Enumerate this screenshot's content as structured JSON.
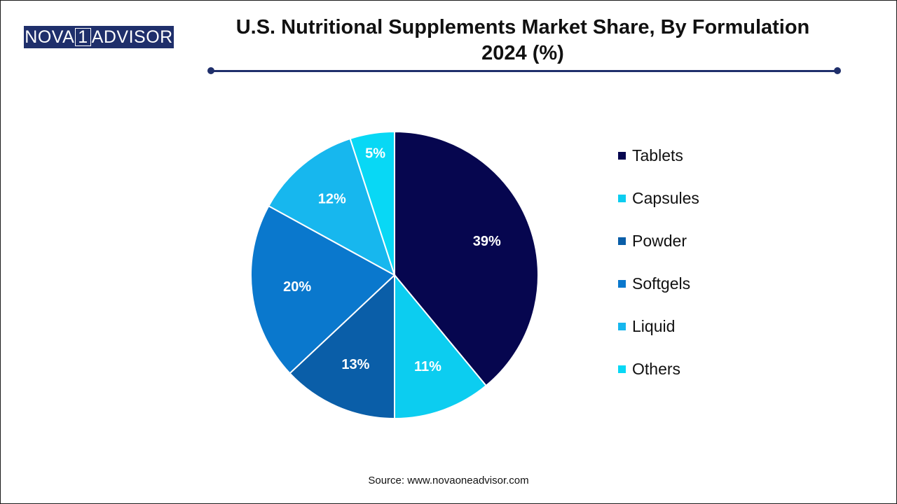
{
  "header": {
    "logo": {
      "part1": "NOVA",
      "part2": "1",
      "part3": "ADVISOR"
    },
    "title_line1": "U.S. Nutritional Supplements Market Share, By Formulation",
    "title_line2": "2024 (%)"
  },
  "chart_data": {
    "type": "pie",
    "title": "U.S. Nutritional Supplements Market Share, By Formulation 2024 (%)",
    "legend_placement": "right",
    "slices": [
      {
        "label": "Tablets",
        "value": 39,
        "display": "39%",
        "color": "#06064f"
      },
      {
        "label": "Capsules",
        "value": 11,
        "display": "11%",
        "color": "#0ccdf0"
      },
      {
        "label": "Powder",
        "value": 13,
        "display": "13%",
        "color": "#0a5ea8"
      },
      {
        "label": "Softgels",
        "value": 20,
        "display": "20%",
        "color": "#0a78cd"
      },
      {
        "label": "Liquid",
        "value": 12,
        "display": "12%",
        "color": "#17b7ee"
      },
      {
        "label": "Others",
        "value": 5,
        "display": "5%",
        "color": "#08d8f5"
      }
    ]
  },
  "footer": {
    "source": "Source: www.novaoneadvisor.com"
  }
}
